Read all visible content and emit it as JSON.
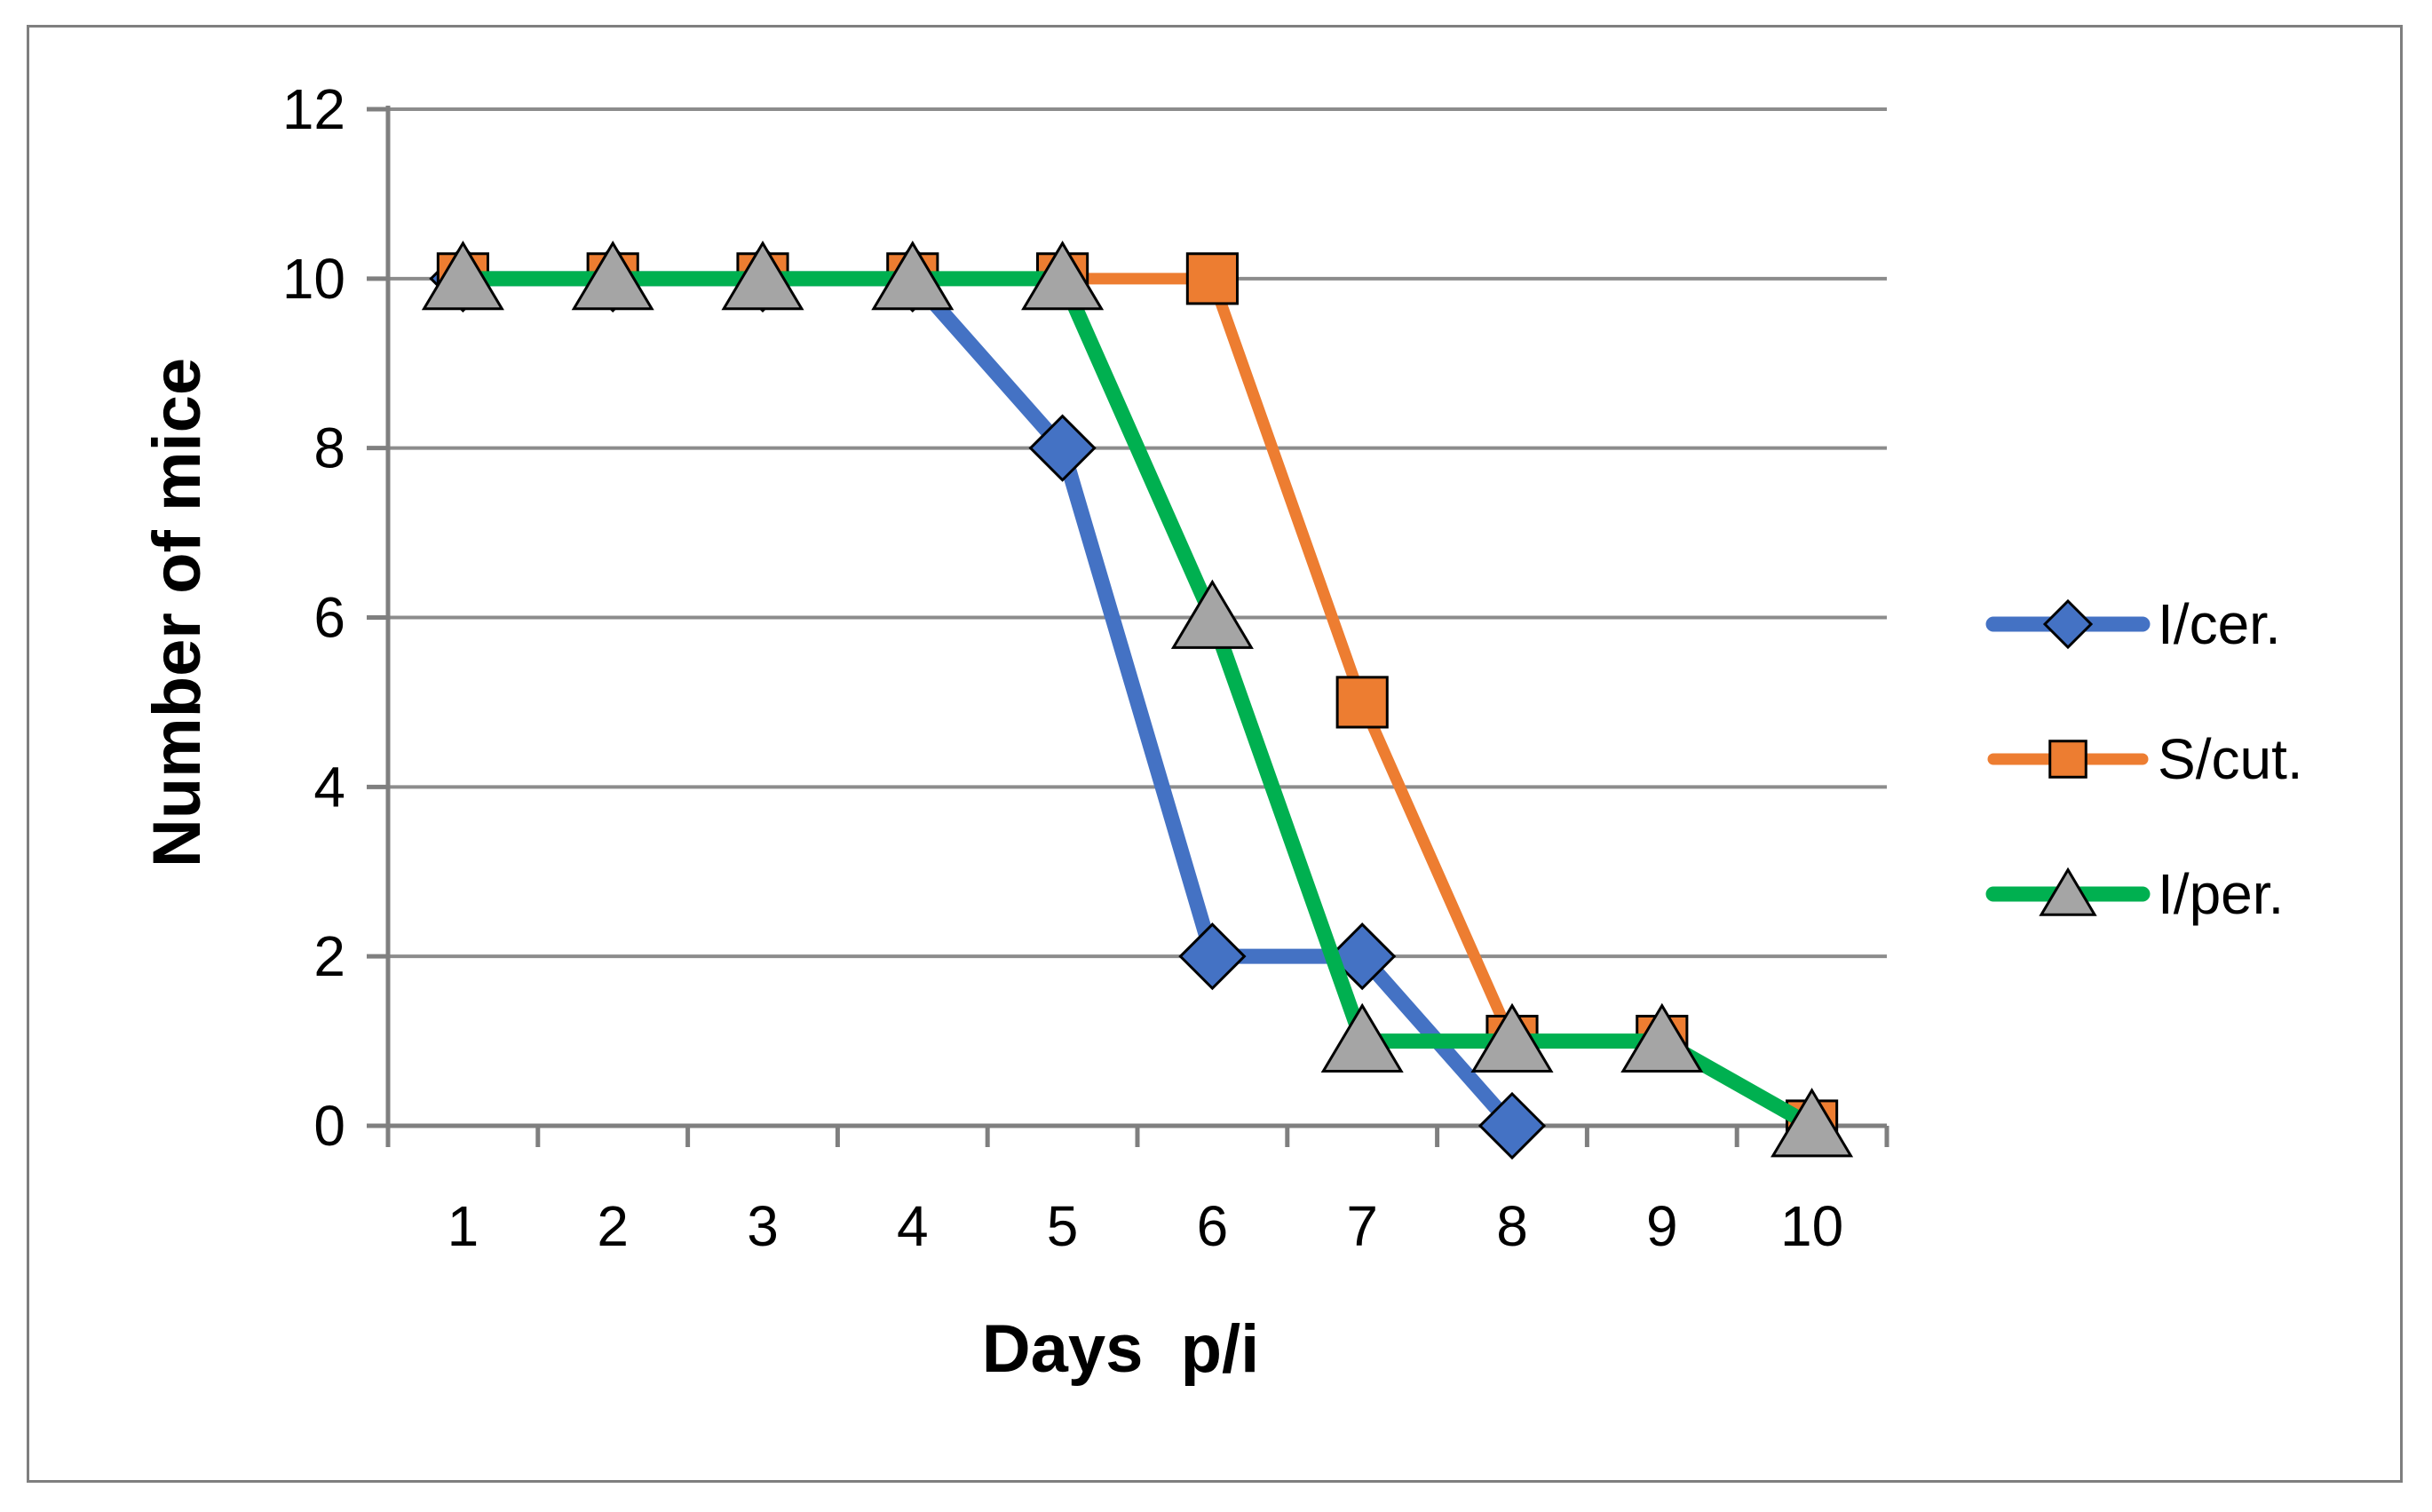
{
  "chart_data": {
    "type": "line",
    "xlabel": "Days  p/i",
    "ylabel": "Number of mice",
    "categories": [
      "1",
      "2",
      "3",
      "4",
      "5",
      "6",
      "7",
      "8",
      "9",
      "10"
    ],
    "ylim": [
      0,
      12
    ],
    "yticks": [
      "0",
      "2",
      "4",
      "6",
      "8",
      "10",
      "12"
    ],
    "grid": "horizontal",
    "legend_position": "right",
    "series": [
      {
        "name": "I/cer.",
        "marker": "diamond",
        "color": "#4472c4",
        "values": [
          10,
          10,
          10,
          10,
          8,
          2,
          2,
          0,
          null,
          null
        ]
      },
      {
        "name": "S/cut.",
        "marker": "square",
        "color": "#ed7d31",
        "values": [
          10,
          10,
          10,
          10,
          10,
          10,
          5,
          1,
          1,
          0
        ]
      },
      {
        "name": "I/per.",
        "marker": "triangle",
        "color": "#00b050",
        "values": [
          10,
          10,
          10,
          10,
          10,
          6,
          1,
          1,
          1,
          0
        ]
      }
    ]
  }
}
